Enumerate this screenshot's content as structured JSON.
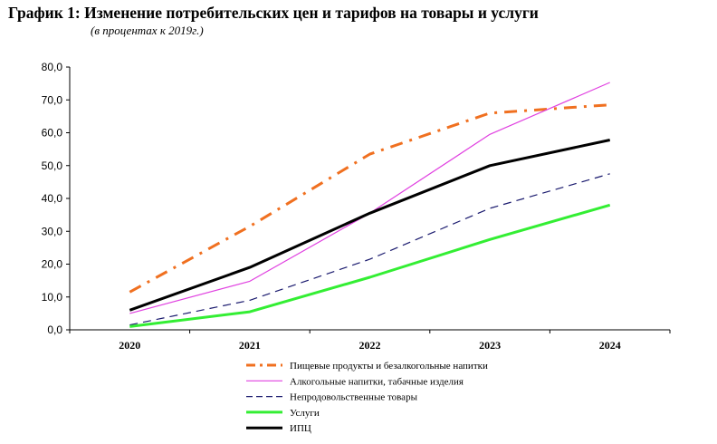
{
  "header": {
    "title": "График 1: Изменение потребительских цен и тарифов на товары и услуги",
    "subtitle": "(в процентах к 2019г.)"
  },
  "chart_data": {
    "type": "line",
    "categories": [
      "2020",
      "2021",
      "2022",
      "2023",
      "2024"
    ],
    "ylim": [
      0,
      80
    ],
    "yticks": [
      "0,0",
      "10,0",
      "20,0",
      "30,0",
      "40,0",
      "50,0",
      "60,0",
      "70,0",
      "80,0"
    ],
    "grid": false,
    "legend_position": "bottom",
    "series": [
      {
        "name": "Пищевые продукты  и безалкогольные напитки",
        "values": [
          11.5,
          31.5,
          53.5,
          66.0,
          68.5
        ],
        "color": "#f07020",
        "style": "dashdot"
      },
      {
        "name": "Алкогольные напитки, табачные  изделия",
        "values": [
          5.0,
          14.8,
          35.5,
          59.5,
          75.3
        ],
        "color": "#e040e0",
        "style": "solid-thin"
      },
      {
        "name": "Непродовольственные   товары",
        "values": [
          1.5,
          9.0,
          21.5,
          37.0,
          47.5
        ],
        "color": "#1a1a6e",
        "style": "dashed"
      },
      {
        "name": "Услуги",
        "values": [
          1.0,
          5.5,
          16.0,
          27.5,
          38.0
        ],
        "color": "#33ee33",
        "style": "solid-thick"
      },
      {
        "name": "ИПЦ",
        "values": [
          6.0,
          19.0,
          35.5,
          50.0,
          57.8
        ],
        "color": "#000000",
        "style": "solid-thick"
      }
    ]
  }
}
